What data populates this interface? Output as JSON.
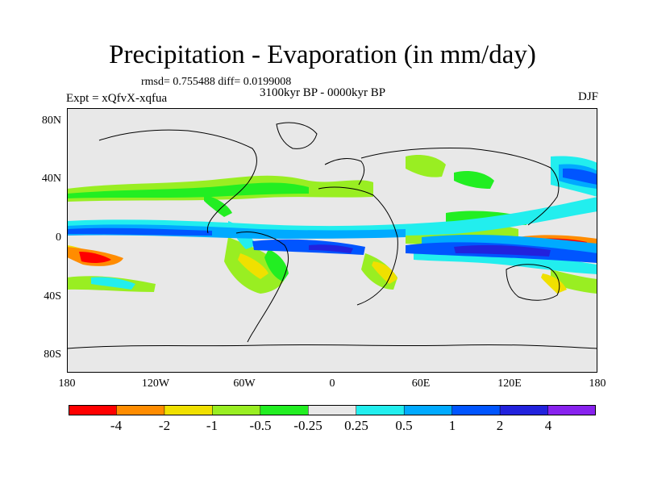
{
  "title": "Precipitation - Evaporation (in mm/day)",
  "stats": "rmsd= 0.755488 diff= 0.0199008",
  "subtitle": "3100kyr BP - 0000kyr BP",
  "left_label": "Expt = xQfvX-xqfua",
  "right_label": "DJF",
  "lat_ticks": [
    "80N",
    "40N",
    "0",
    "40S",
    "80S"
  ],
  "lon_ticks": [
    "180",
    "120W",
    "60W",
    "0",
    "60E",
    "120E",
    "180"
  ],
  "colorbar": {
    "labels": [
      "-4",
      "-2",
      "-1",
      "-0.5",
      "-0.25",
      "0.25",
      "0.5",
      "1",
      "2",
      "4"
    ],
    "colors": [
      "#ff0000",
      "#ff8c00",
      "#f0e000",
      "#99ee22",
      "#22ee22",
      "#e8e8e8",
      "#22eeee",
      "#00aaff",
      "#0055ff",
      "#2222dd",
      "#8822ee"
    ]
  },
  "colors": {
    "ocean_neutral": "#e8e8e8",
    "coast": "#000000"
  }
}
